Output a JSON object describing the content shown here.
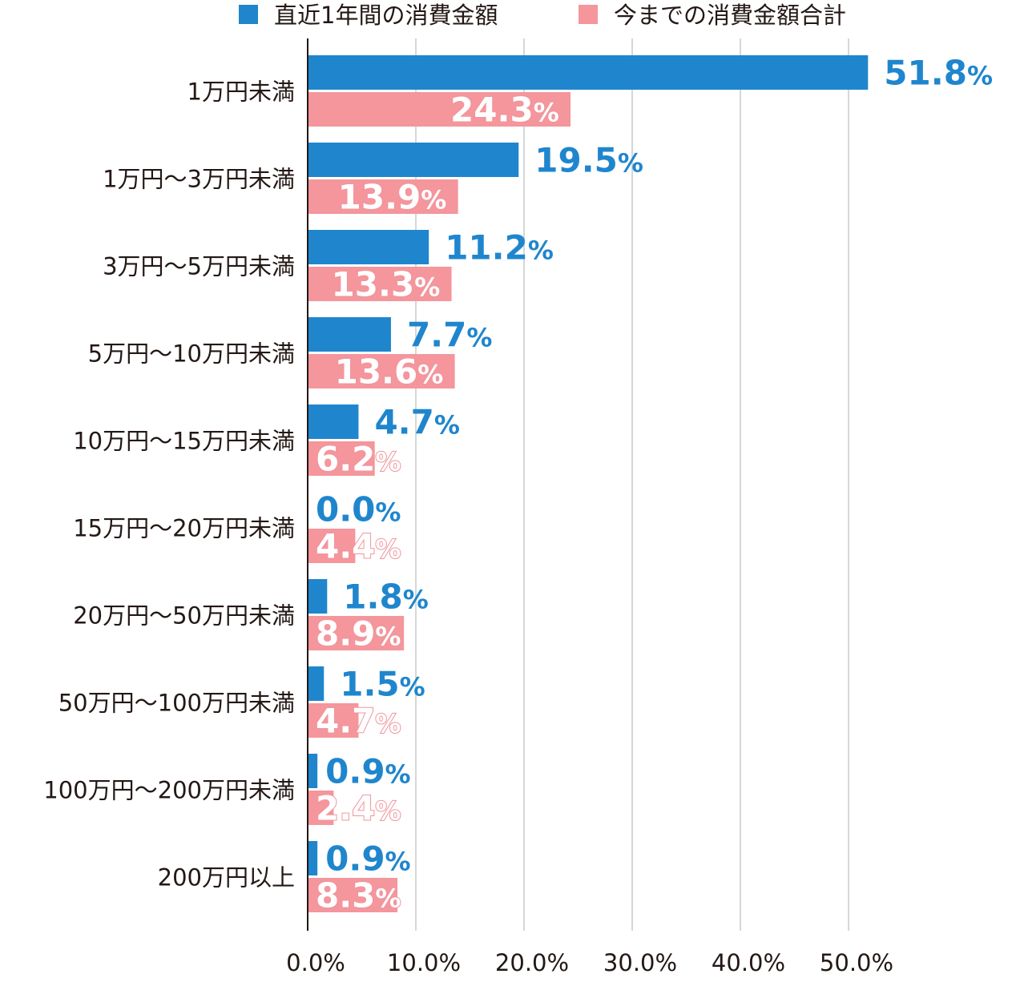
{
  "chart_data": {
    "type": "bar",
    "orientation": "horizontal",
    "categories": [
      "1万円未満",
      "1万円～3万円未満",
      "3万円～5万円未満",
      "5万円～10万円未満",
      "10万円～15万円未満",
      "15万円～20万円未満",
      "20万円～50万円未満",
      "50万円～100万円未満",
      "100万円～200万円未満",
      "200万円以上"
    ],
    "series": [
      {
        "name": "直近1年間の消費金額",
        "color": "#1f86cd",
        "values": [
          51.8,
          19.5,
          11.2,
          7.7,
          4.7,
          0.0,
          1.8,
          1.5,
          0.9,
          0.9
        ],
        "labels": [
          "51.8",
          "19.5",
          "11.2",
          "7.7",
          "4.7",
          "0.0",
          "1.8",
          "1.5",
          "0.9",
          "0.9"
        ]
      },
      {
        "name": "今までの消費金額合計",
        "color": "#f4969c",
        "values": [
          24.3,
          13.9,
          13.3,
          13.6,
          6.2,
          4.4,
          8.9,
          4.7,
          2.4,
          8.3
        ],
        "labels": [
          "24.3",
          "13.9",
          "13.3",
          "13.6",
          "6.2",
          "4.4",
          "8.9",
          "4.7",
          "2.4",
          "8.3"
        ]
      }
    ],
    "value_suffix": "%",
    "xlim": [
      0,
      52
    ],
    "xticks": [
      0,
      10,
      20,
      30,
      40,
      50
    ],
    "xtick_labels": [
      "0.0%",
      "10.0%",
      "20.0%",
      "30.0%",
      "40.0%",
      "50.0%"
    ],
    "grid": true,
    "legend_position": "top"
  }
}
